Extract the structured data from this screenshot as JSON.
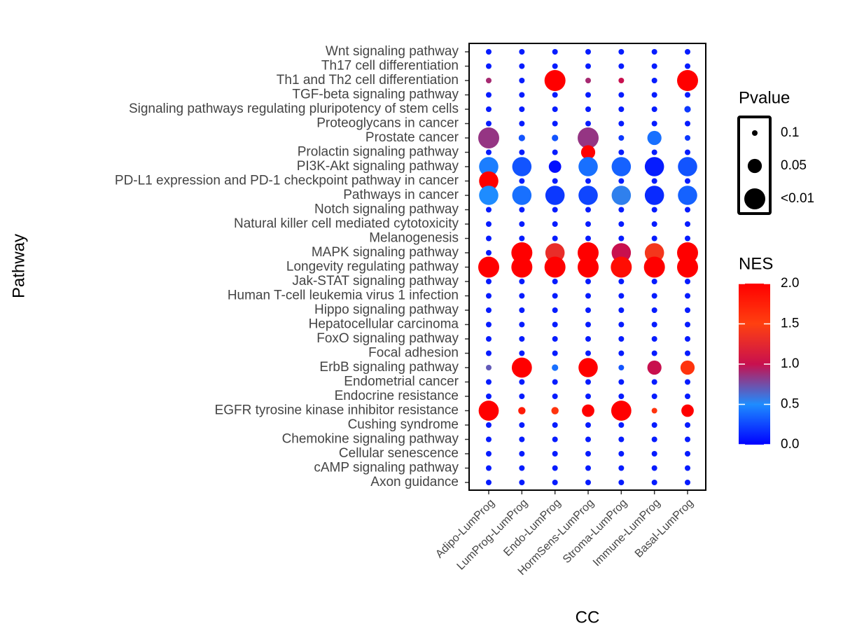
{
  "chart_data": {
    "type": "dot",
    "xlabel": "CC",
    "ylabel": "Pathway",
    "x_categories": [
      "Adipo-LumProg",
      "LumProg-LumProg",
      "Endo-LumProg",
      "HormSens-LumProg",
      "Stroma-LumProg",
      "Immune-LumProg",
      "Basal-LumProg"
    ],
    "y_categories": [
      "Wnt signaling pathway",
      "Th17 cell differentiation",
      "Th1 and Th2 cell differentiation",
      "TGF-beta signaling pathway",
      "Signaling pathways regulating pluripotency of stem cells",
      "Proteoglycans in cancer",
      "Prostate cancer",
      "Prolactin signaling pathway",
      "PI3K-Akt signaling pathway",
      "PD-L1 expression and PD-1 checkpoint pathway in cancer",
      "Pathways in cancer",
      "Notch signaling pathway",
      "Natural killer cell mediated cytotoxicity",
      "Melanogenesis",
      "MAPK signaling pathway",
      "Longevity regulating pathway",
      "Jak-STAT signaling pathway",
      "Human T-cell leukemia virus 1 infection",
      "Hippo signaling pathway",
      "Hepatocellular carcinoma",
      "FoxO signaling pathway",
      "Focal adhesion",
      "ErbB signaling pathway",
      "Endometrial cancer",
      "Endocrine resistance",
      "EGFR tyrosine kinase inhibitor resistance",
      "Cushing syndrome",
      "Chemokine signaling pathway",
      "Cellular senescence",
      "cAMP signaling pathway",
      "Axon guidance"
    ],
    "nes": [
      [
        0.1,
        0.1,
        0.1,
        0.1,
        0.1,
        0.1,
        0.1
      ],
      [
        0.1,
        0.1,
        0.1,
        0.1,
        0.1,
        0.1,
        0.1
      ],
      [
        0.9,
        0.1,
        2.0,
        0.9,
        1.0,
        0.1,
        2.0
      ],
      [
        0.1,
        0.1,
        0.1,
        0.1,
        0.1,
        0.1,
        0.1
      ],
      [
        0.1,
        0.1,
        0.1,
        0.1,
        0.1,
        0.1,
        0.2
      ],
      [
        0.1,
        0.1,
        0.1,
        0.1,
        0.1,
        0.1,
        0.1
      ],
      [
        0.85,
        0.3,
        0.3,
        0.85,
        0.2,
        0.4,
        0.2
      ],
      [
        0.1,
        0.1,
        0.1,
        2.0,
        0.1,
        0.1,
        0.1
      ],
      [
        0.45,
        0.3,
        0.05,
        0.4,
        0.35,
        0.1,
        0.3
      ],
      [
        2.0,
        0.1,
        0.1,
        0.1,
        0.1,
        0.1,
        0.1
      ],
      [
        0.5,
        0.4,
        0.2,
        0.25,
        0.55,
        0.15,
        0.35
      ],
      [
        0.1,
        0.1,
        0.1,
        0.1,
        0.1,
        0.1,
        0.1
      ],
      [
        0.1,
        0.1,
        0.1,
        0.1,
        0.1,
        0.1,
        0.1
      ],
      [
        0.1,
        0.1,
        0.1,
        0.1,
        0.1,
        0.1,
        0.1
      ],
      [
        0.1,
        2.0,
        1.3,
        2.0,
        1.0,
        1.4,
        2.0
      ],
      [
        2.0,
        2.0,
        2.0,
        2.0,
        1.9,
        2.0,
        2.0
      ],
      [
        0.1,
        0.1,
        0.1,
        0.1,
        0.1,
        0.1,
        0.1
      ],
      [
        0.1,
        0.1,
        0.1,
        0.1,
        0.1,
        0.1,
        0.1
      ],
      [
        0.1,
        0.1,
        0.1,
        0.1,
        0.1,
        0.1,
        0.1
      ],
      [
        0.1,
        0.1,
        0.1,
        0.1,
        0.1,
        0.1,
        0.1
      ],
      [
        0.1,
        0.1,
        0.1,
        0.1,
        0.1,
        0.1,
        0.1
      ],
      [
        0.1,
        0.1,
        0.1,
        0.1,
        0.1,
        0.1,
        0.1
      ],
      [
        0.7,
        2.0,
        0.4,
        2.0,
        0.3,
        1.0,
        1.6
      ],
      [
        0.1,
        0.1,
        0.1,
        0.1,
        0.1,
        0.1,
        0.1
      ],
      [
        0.1,
        0.1,
        0.1,
        0.1,
        0.1,
        0.1,
        0.1
      ],
      [
        2.0,
        1.8,
        1.6,
        2.0,
        2.0,
        1.6,
        2.0
      ],
      [
        0.1,
        0.1,
        0.1,
        0.1,
        0.1,
        0.1,
        0.1
      ],
      [
        0.1,
        0.1,
        0.1,
        0.1,
        0.1,
        0.1,
        0.1
      ],
      [
        0.1,
        0.1,
        0.1,
        0.1,
        0.1,
        0.1,
        0.1
      ],
      [
        0.1,
        0.1,
        0.1,
        0.1,
        0.1,
        0.1,
        0.1
      ],
      [
        0.1,
        0.1,
        0.1,
        0.1,
        0.1,
        0.1,
        0.1
      ]
    ],
    "pvalue": [
      [
        0.1,
        0.1,
        0.1,
        0.1,
        0.1,
        0.1,
        0.1
      ],
      [
        0.1,
        0.1,
        0.1,
        0.1,
        0.1,
        0.1,
        0.1
      ],
      [
        0.1,
        0.1,
        0.01,
        0.1,
        0.1,
        0.1,
        0.01
      ],
      [
        0.1,
        0.1,
        0.1,
        0.1,
        0.1,
        0.1,
        0.1
      ],
      [
        0.1,
        0.1,
        0.1,
        0.1,
        0.1,
        0.1,
        0.095
      ],
      [
        0.1,
        0.1,
        0.1,
        0.1,
        0.1,
        0.1,
        0.1
      ],
      [
        0.01,
        0.095,
        0.095,
        0.01,
        0.1,
        0.05,
        0.1
      ],
      [
        0.1,
        0.1,
        0.1,
        0.05,
        0.1,
        0.1,
        0.1
      ],
      [
        0.02,
        0.02,
        0.06,
        0.02,
        0.02,
        0.02,
        0.02
      ],
      [
        0.02,
        0.1,
        0.1,
        0.1,
        0.1,
        0.1,
        0.1
      ],
      [
        0.02,
        0.02,
        0.02,
        0.02,
        0.02,
        0.02,
        0.02
      ],
      [
        0.1,
        0.1,
        0.1,
        0.1,
        0.1,
        0.1,
        0.1
      ],
      [
        0.1,
        0.1,
        0.1,
        0.1,
        0.1,
        0.1,
        0.1
      ],
      [
        0.1,
        0.1,
        0.1,
        0.1,
        0.1,
        0.1,
        0.1
      ],
      [
        0.1,
        0.01,
        0.02,
        0.01,
        0.02,
        0.02,
        0.01
      ],
      [
        0.01,
        0.01,
        0.01,
        0.01,
        0.01,
        0.01,
        0.01
      ],
      [
        0.1,
        0.1,
        0.1,
        0.1,
        0.1,
        0.1,
        0.1
      ],
      [
        0.1,
        0.1,
        0.1,
        0.1,
        0.1,
        0.1,
        0.1
      ],
      [
        0.1,
        0.1,
        0.1,
        0.1,
        0.1,
        0.1,
        0.1
      ],
      [
        0.1,
        0.1,
        0.1,
        0.1,
        0.1,
        0.1,
        0.1
      ],
      [
        0.1,
        0.1,
        0.1,
        0.1,
        0.1,
        0.1,
        0.1
      ],
      [
        0.1,
        0.1,
        0.1,
        0.1,
        0.1,
        0.1,
        0.1
      ],
      [
        0.1,
        0.015,
        0.095,
        0.02,
        0.1,
        0.05,
        0.05
      ],
      [
        0.1,
        0.1,
        0.1,
        0.1,
        0.1,
        0.1,
        0.1
      ],
      [
        0.1,
        0.1,
        0.1,
        0.1,
        0.1,
        0.1,
        0.1
      ],
      [
        0.015,
        0.09,
        0.09,
        0.06,
        0.015,
        0.1,
        0.06
      ],
      [
        0.1,
        0.1,
        0.1,
        0.1,
        0.1,
        0.1,
        0.1
      ],
      [
        0.1,
        0.1,
        0.1,
        0.1,
        0.1,
        0.1,
        0.1
      ],
      [
        0.1,
        0.1,
        0.1,
        0.1,
        0.1,
        0.1,
        0.1
      ],
      [
        0.1,
        0.1,
        0.1,
        0.1,
        0.1,
        0.1,
        0.1
      ],
      [
        0.1,
        0.1,
        0.1,
        0.1,
        0.1,
        0.1,
        0.1
      ]
    ],
    "size_title": "Pvalue",
    "size_ticks": [
      0.1,
      0.05,
      {
        "value": 0.01,
        "label": "<0.01"
      }
    ],
    "size_lim": [
      0.1,
      0.01
    ],
    "color_title": "NES",
    "color_lim": [
      0,
      2
    ],
    "color_ticks": [
      {
        "value": 2,
        "label": "2.0"
      },
      1.5,
      {
        "value": 1,
        "label": "1.0"
      },
      0.5,
      {
        "value": 0,
        "label": "0.0"
      }
    ],
    "colorscale": [
      "#0000ff",
      "#1e8cff",
      "#c8104e",
      "#ff4010",
      "#ff0000"
    ]
  }
}
